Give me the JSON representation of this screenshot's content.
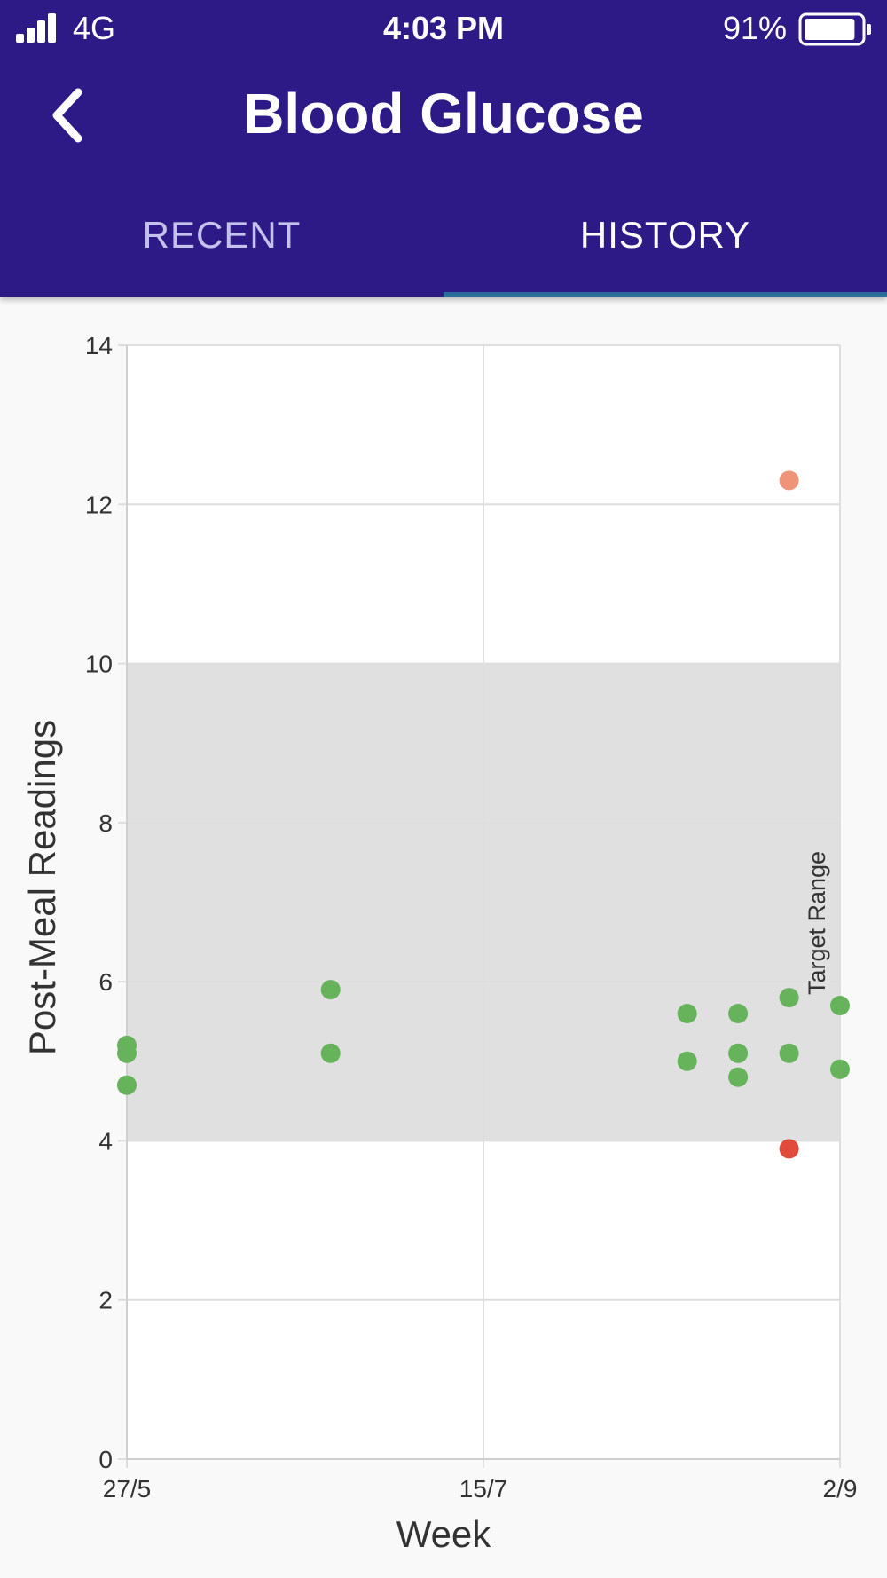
{
  "status_bar": {
    "network": "4G",
    "time": "4:03 PM",
    "battery": "91%",
    "battery_level": 0.91,
    "signal_bars": 4
  },
  "header": {
    "title": "Blood Glucose",
    "back_icon": "chevron-left-icon"
  },
  "tabs": [
    {
      "label": "RECENT",
      "active": false
    },
    {
      "label": "HISTORY",
      "active": true
    }
  ],
  "colors": {
    "header_bg": "#2d1a87",
    "tab_indicator": "#2a6b9a",
    "in_range": "#66b35c",
    "high": "#ef9478",
    "low": "#e14b3b",
    "target_band": "#e0e0e0"
  },
  "chart_data": {
    "type": "scatter",
    "xlabel": "Week",
    "ylabel": "Post-Meal Readings",
    "ylim": [
      0,
      14
    ],
    "yticks": [
      "0",
      "2",
      "4",
      "6",
      "8",
      "10",
      "12",
      "14"
    ],
    "xlim": [
      "2018-05-27",
      "2018-09-02"
    ],
    "xticks": [
      {
        "label": "27/5",
        "date": "2018-05-27"
      },
      {
        "label": "15/7",
        "date": "2018-07-15"
      },
      {
        "label": "2/9",
        "date": "2018-09-02"
      }
    ],
    "target_range": {
      "label": "Target Range",
      "min": 4,
      "max": 10
    },
    "grid": true,
    "points": [
      {
        "date": "2018-05-27",
        "value": 5.2,
        "status": "in_range"
      },
      {
        "date": "2018-05-27",
        "value": 5.1,
        "status": "in_range"
      },
      {
        "date": "2018-05-27",
        "value": 4.7,
        "status": "in_range"
      },
      {
        "date": "2018-06-24",
        "value": 5.9,
        "status": "in_range"
      },
      {
        "date": "2018-06-24",
        "value": 5.1,
        "status": "in_range"
      },
      {
        "date": "2018-08-12",
        "value": 5.6,
        "status": "in_range"
      },
      {
        "date": "2018-08-12",
        "value": 5.0,
        "status": "in_range"
      },
      {
        "date": "2018-08-19",
        "value": 5.6,
        "status": "in_range"
      },
      {
        "date": "2018-08-19",
        "value": 5.1,
        "status": "in_range"
      },
      {
        "date": "2018-08-19",
        "value": 4.8,
        "status": "in_range"
      },
      {
        "date": "2018-08-26",
        "value": 12.3,
        "status": "high"
      },
      {
        "date": "2018-08-26",
        "value": 5.8,
        "status": "in_range"
      },
      {
        "date": "2018-08-26",
        "value": 5.1,
        "status": "in_range"
      },
      {
        "date": "2018-08-26",
        "value": 3.9,
        "status": "low"
      },
      {
        "date": "2018-09-02",
        "value": 5.7,
        "status": "in_range"
      },
      {
        "date": "2018-09-02",
        "value": 4.9,
        "status": "in_range"
      }
    ]
  }
}
